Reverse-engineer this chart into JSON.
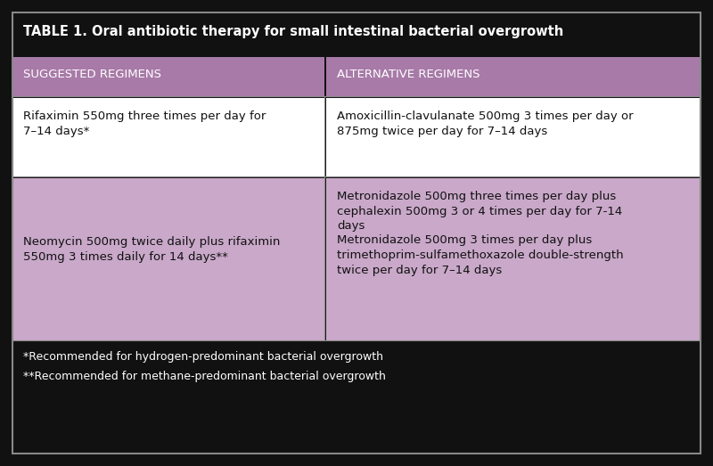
{
  "title": "TABLE 1. Oral antibiotic therapy for small intestinal bacterial overgrowth",
  "col_headers": [
    "SUGGESTED REGIMENS",
    "ALTERNATIVE REGIMENS"
  ],
  "header_bg": "#A87AA8",
  "header_text_color": "#FFFFFF",
  "title_bg": "#111111",
  "title_text_color": "#FFFFFF",
  "outer_bg": "#111111",
  "footer_bg": "#111111",
  "footer_text_color": "#FFFFFF",
  "row1_left_bg": "#FFFFFF",
  "row1_right_bg": "#FFFFFF",
  "row2_left_bg": "#C9A8C9",
  "row2_right_bg": "#C9A8C9",
  "cell_text_color": "#111111",
  "row1_left": "Rifaximin 550mg three times per day for\n7–14 days*",
  "row1_right": "Amoxicillin-clavulanate 500mg 3 times per day or\n875mg twice per day for 7–14 days",
  "row2_left": "Neomycin 500mg twice daily plus rifaximin\n550mg 3 times daily for 14 days**",
  "row2_right": "Metronidazole 500mg three times per day plus\ncephalexin 500mg 3 or 4 times per day for 7-14\ndays\nMetronidazole 500mg 3 times per day plus\ntrimethoprim-sulfamethoxazole double-strength\ntwice per day for 7–14 days",
  "footer_line1": "*Recommended for hydrogen-predominant bacterial overgrowth",
  "footer_line2": "**Recommended for methane-predominant bacterial overgrowth",
  "col_split": 0.455,
  "border_color": "#888888",
  "border_lw": 0.8
}
